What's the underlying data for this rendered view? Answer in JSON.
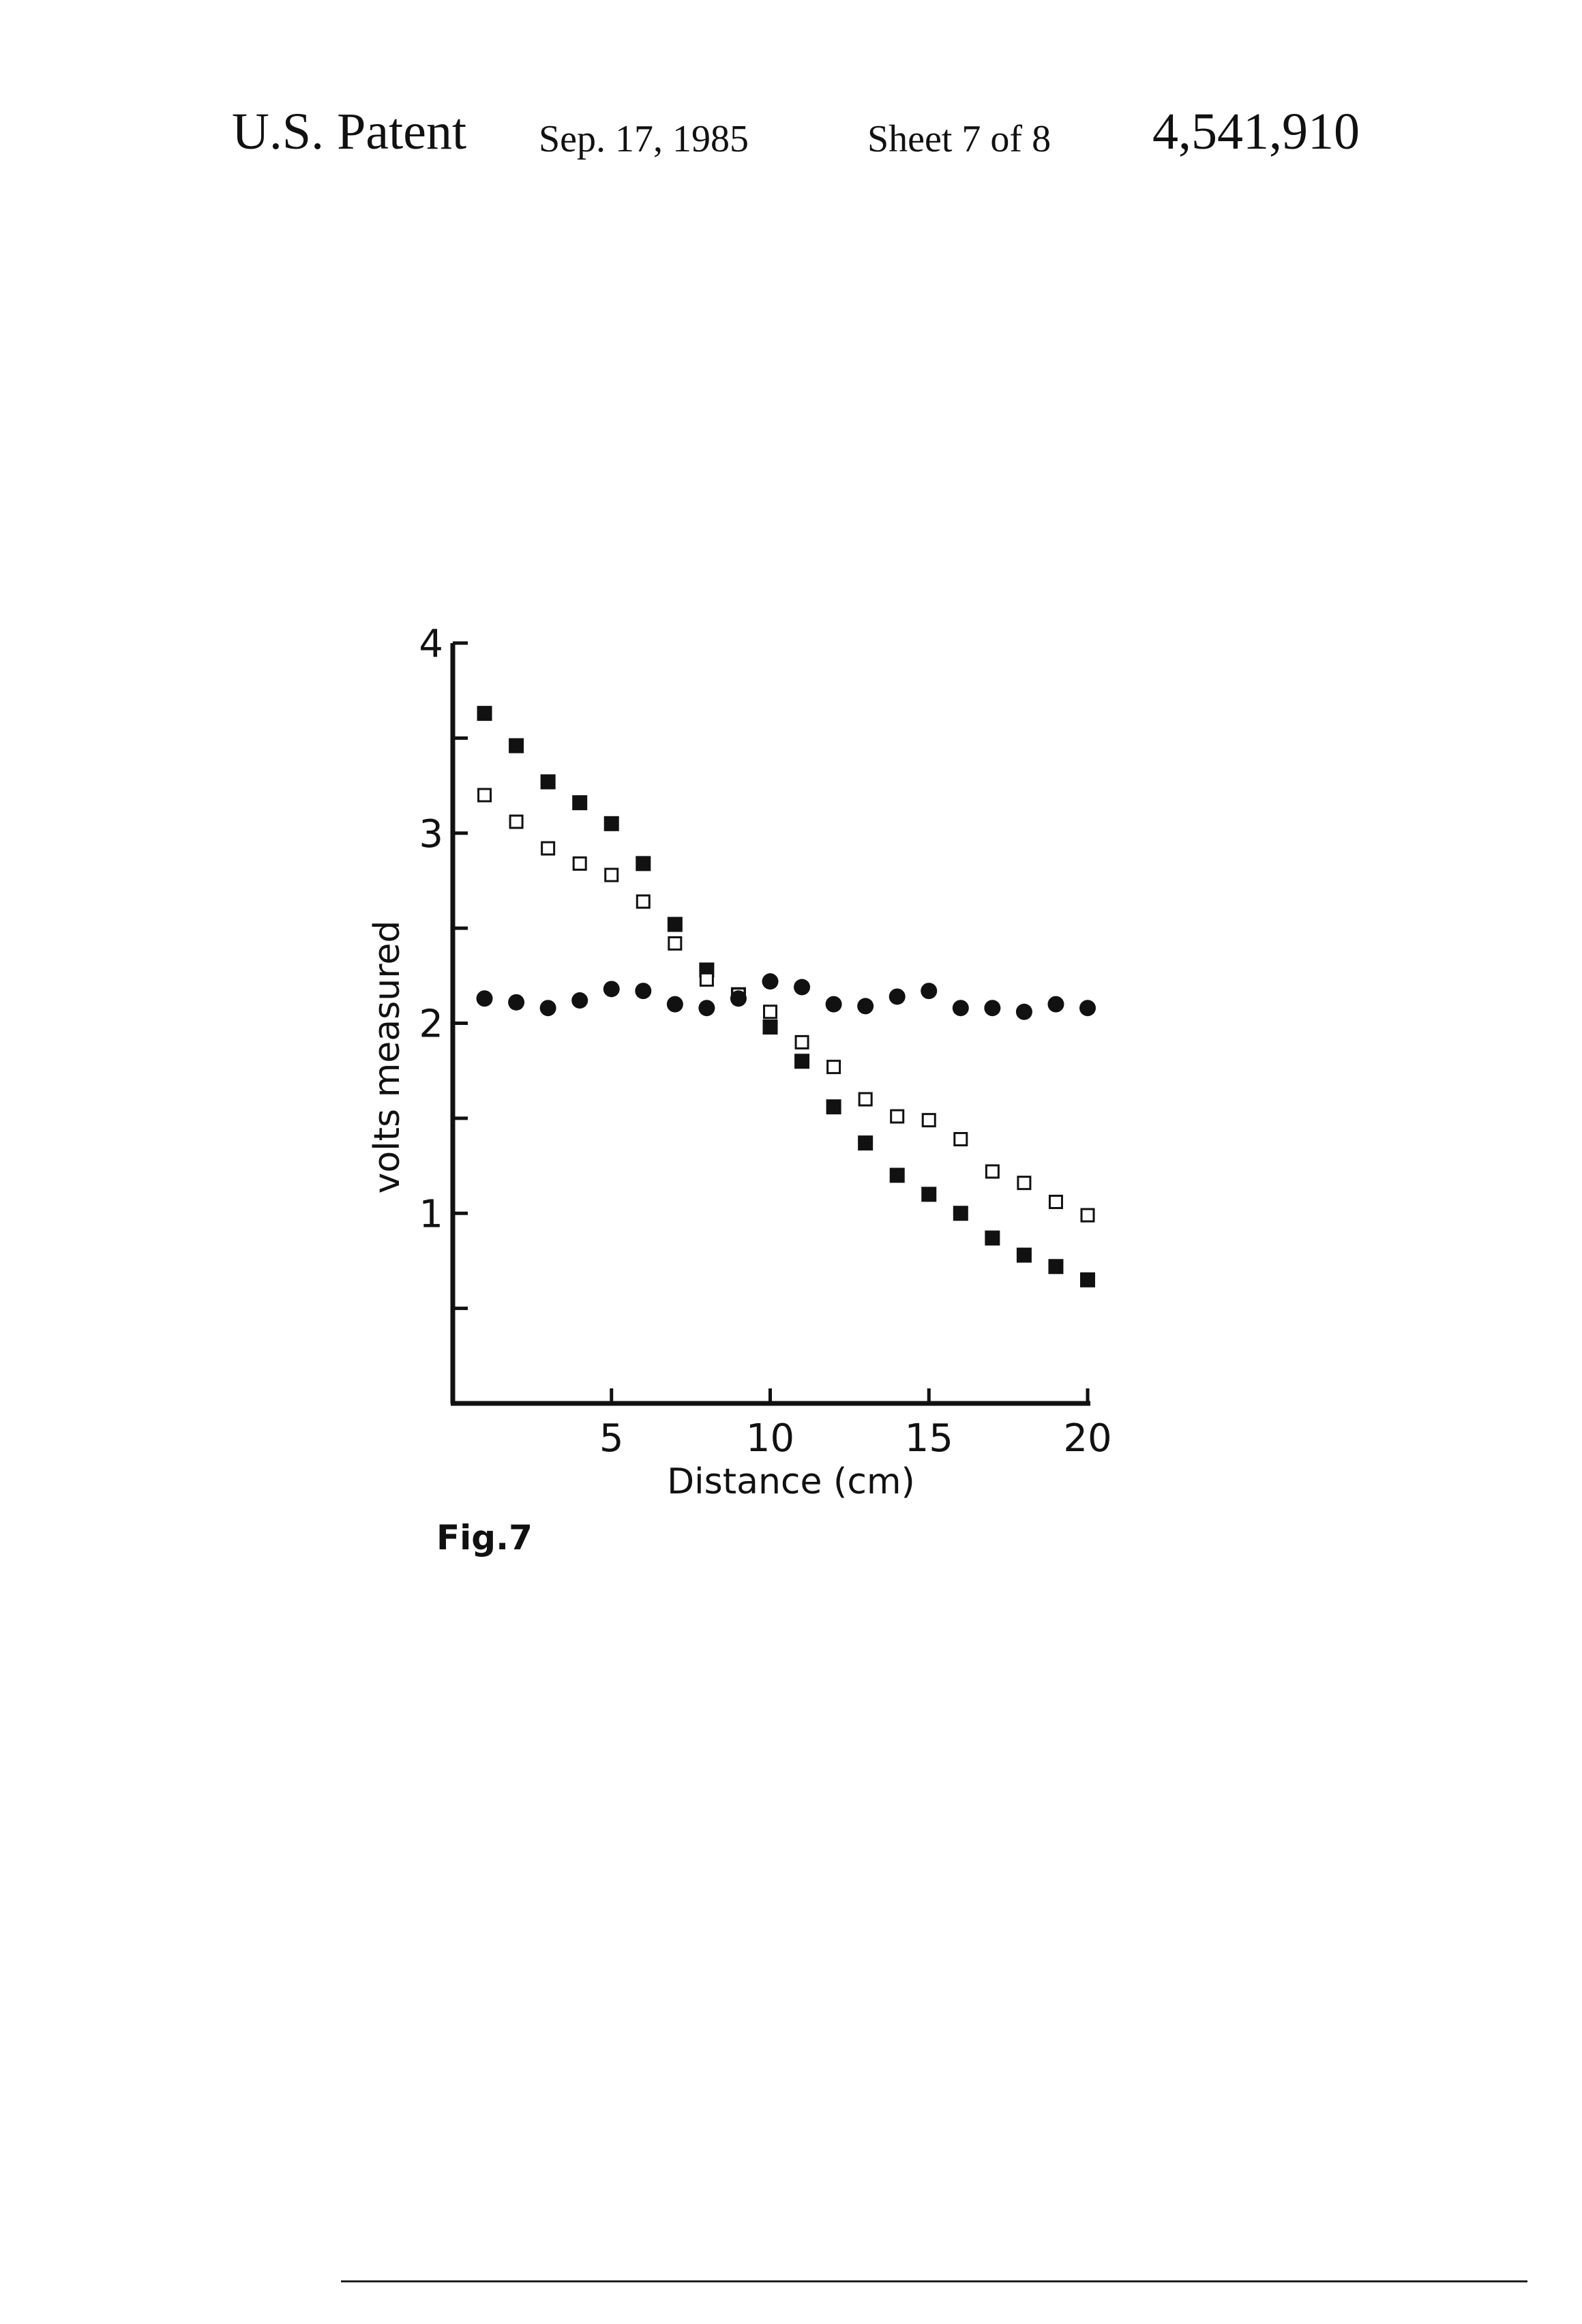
{
  "header": {
    "label": "U.S. Patent",
    "date": "Sep. 17, 1985",
    "sheet": "Sheet 7 of 8",
    "number": "4,541,910"
  },
  "figure_label": "Fig.7",
  "chart_data": {
    "type": "scatter",
    "title": "",
    "xlabel": "Distance (cm)",
    "ylabel": "volts measured",
    "xlim": [
      0,
      20
    ],
    "ylim": [
      0,
      4
    ],
    "xticks": [
      5,
      10,
      15,
      20
    ],
    "xtick_labels": [
      "5",
      "10",
      "15",
      "20"
    ],
    "yticks": [
      0.5,
      1,
      1.5,
      2,
      2.5,
      3,
      3.5,
      4
    ],
    "ytick_labels": [
      "",
      "1",
      "",
      "2",
      "",
      "3",
      "",
      "4"
    ],
    "grid": false,
    "legend": "none",
    "series": [
      {
        "marker": "filled-square",
        "color": "#111111",
        "x": [
          1,
          2,
          3,
          4,
          5,
          6,
          7,
          8,
          9,
          10,
          11,
          12,
          13,
          14,
          15,
          16,
          17,
          18,
          19,
          20
        ],
        "y": [
          3.63,
          3.46,
          3.27,
          3.16,
          3.05,
          2.84,
          2.52,
          2.28,
          2.15,
          1.98,
          1.8,
          1.56,
          1.37,
          1.2,
          1.1,
          1.0,
          0.87,
          0.78,
          0.72,
          0.65
        ]
      },
      {
        "marker": "open-square",
        "color": "#111111",
        "x": [
          1,
          2,
          3,
          4,
          5,
          6,
          7,
          8,
          9,
          10,
          11,
          12,
          13,
          14,
          15,
          16,
          17,
          18,
          19,
          20
        ],
        "y": [
          3.2,
          3.06,
          2.92,
          2.84,
          2.78,
          2.64,
          2.42,
          2.23,
          2.15,
          2.06,
          1.9,
          1.77,
          1.6,
          1.51,
          1.49,
          1.39,
          1.22,
          1.16,
          1.06,
          0.99
        ]
      },
      {
        "marker": "filled-circle",
        "color": "#111111",
        "x": [
          1,
          2,
          3,
          4,
          5,
          6,
          7,
          8,
          9,
          10,
          11,
          12,
          13,
          14,
          15,
          16,
          17,
          18,
          19,
          20
        ],
        "y": [
          2.13,
          2.11,
          2.08,
          2.12,
          2.18,
          2.17,
          2.1,
          2.08,
          2.13,
          2.22,
          2.19,
          2.1,
          2.09,
          2.14,
          2.17,
          2.08,
          2.08,
          2.06,
          2.1,
          2.08
        ]
      }
    ]
  }
}
